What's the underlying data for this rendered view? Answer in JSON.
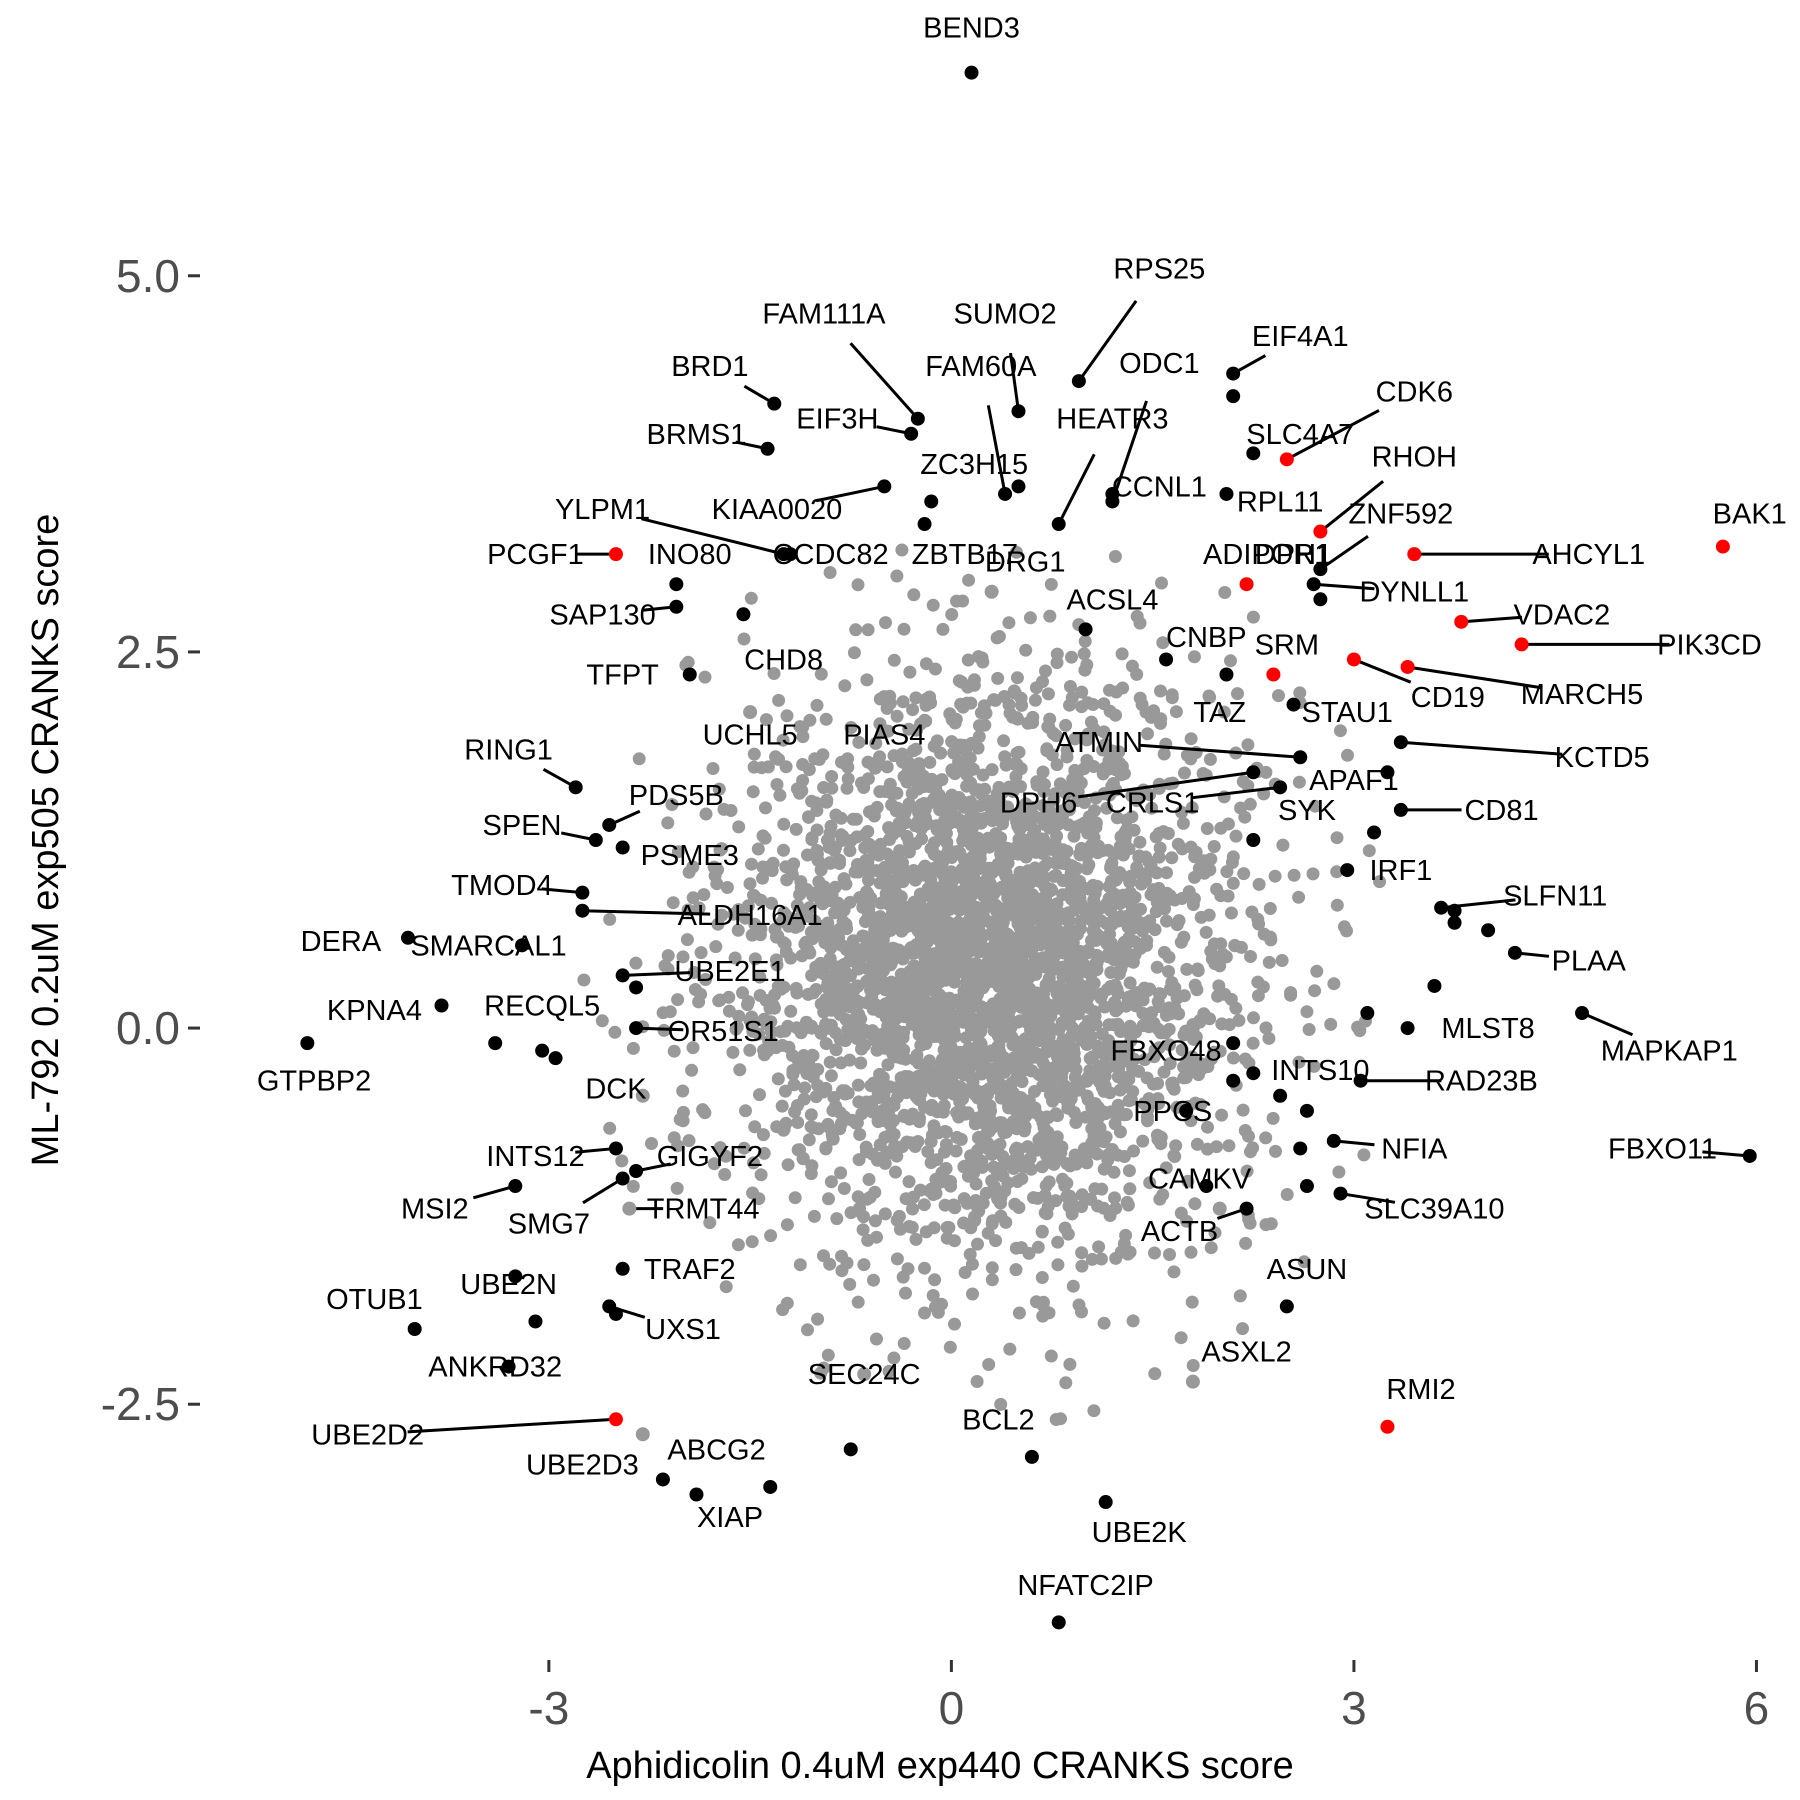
{
  "chart_data": {
    "type": "scatter",
    "xlabel": "Aphidicolin 0.4uM exp440 CRANKS score",
    "ylabel": "ML-792 0.2uM exp505 CRANKS score",
    "xlim": [
      -5.6,
      6.25
    ],
    "ylim": [
      -4.2,
      6.7
    ],
    "xticks": [
      "-3",
      "0",
      "3",
      "6"
    ],
    "yticks": [
      "-2.5",
      "0.0",
      "2.5",
      "5.0"
    ],
    "grid": false,
    "colors": {
      "background": "#ffffff",
      "default_point": "#999999",
      "highlight_point": "#000000",
      "special_point": "#ff0000"
    },
    "background_cloud": {
      "count": 3200,
      "center": [
        0.3,
        0.4
      ],
      "sd": [
        0.95,
        0.95
      ],
      "color": "#999999"
    },
    "points": [
      {
        "label": "BEND3",
        "x": 0.15,
        "y": 6.35,
        "c": "b"
      },
      {
        "label": "RPS25",
        "x": 0.95,
        "y": 4.3,
        "c": "b",
        "lx": 1.55,
        "ly": 5.05
      },
      {
        "label": "SUMO2",
        "x": 0.5,
        "y": 4.1,
        "c": "b",
        "lx": 0.4,
        "ly": 4.75
      },
      {
        "label": "FAM111A",
        "x": -0.25,
        "y": 4.05,
        "c": "b",
        "lx": -0.95,
        "ly": 4.75
      },
      {
        "label": "FAM60A",
        "x": 0.4,
        "y": 3.55,
        "c": "b",
        "lx": 0.22,
        "ly": 4.4
      },
      {
        "label": "ODC1",
        "x": 1.2,
        "y": 3.5,
        "c": "b",
        "lx": 1.55,
        "ly": 4.42
      },
      {
        "label": "EIF4A1",
        "x": 2.1,
        "y": 4.35,
        "c": "b",
        "lx": 2.6,
        "ly": 4.6
      },
      {
        "label": "",
        "x": 2.1,
        "y": 4.2,
        "c": "b"
      },
      {
        "label": "BRD1",
        "x": -1.32,
        "y": 4.15,
        "c": "b",
        "lx": -1.8,
        "ly": 4.4
      },
      {
        "label": "EIF3H",
        "x": -0.3,
        "y": 3.95,
        "c": "b",
        "lx": -0.85,
        "ly": 4.05
      },
      {
        "label": "BRMS1",
        "x": -1.37,
        "y": 3.85,
        "c": "b",
        "lx": -1.9,
        "ly": 3.95
      },
      {
        "label": "HEATR3",
        "x": 0.8,
        "y": 3.35,
        "c": "b",
        "lx": 1.2,
        "ly": 4.05
      },
      {
        "label": "CDK6",
        "x": 2.5,
        "y": 3.78,
        "c": "r",
        "lx": 3.45,
        "ly": 4.23
      },
      {
        "label": "SLC4A7",
        "x": 2.25,
        "y": 3.82,
        "c": "b",
        "lx": 2.6,
        "ly": 3.95
      },
      {
        "label": "ZC3H15",
        "x": 0.5,
        "y": 3.6,
        "c": "b",
        "lx": 0.17,
        "ly": 3.75
      },
      {
        "label": "RHOH",
        "x": 2.75,
        "y": 3.3,
        "c": "r",
        "lx": 3.45,
        "ly": 3.8
      },
      {
        "label": "CCNL1",
        "x": 1.2,
        "y": 3.55,
        "c": "b",
        "lx": 1.55,
        "ly": 3.6
      },
      {
        "label": "RPL11",
        "x": 2.05,
        "y": 3.55,
        "c": "b",
        "lx": 2.45,
        "ly": 3.5
      },
      {
        "label": "YLPM1",
        "x": -1.25,
        "y": 3.15,
        "c": "b",
        "lx": -2.6,
        "ly": 3.45
      },
      {
        "label": "KIAA0020",
        "x": -0.5,
        "y": 3.6,
        "c": "b",
        "lx": -1.3,
        "ly": 3.45
      },
      {
        "label": "",
        "x": -0.15,
        "y": 3.5,
        "c": "b"
      },
      {
        "label": "ZNF592",
        "x": 2.75,
        "y": 3.05,
        "c": "b",
        "lx": 3.35,
        "ly": 3.42
      },
      {
        "label": "BAK1",
        "x": 5.75,
        "y": 3.2,
        "c": "r",
        "lx": 5.95,
        "ly": 3.42
      },
      {
        "label": "PCGF1",
        "x": -2.5,
        "y": 3.15,
        "c": "r",
        "lx": -3.1,
        "ly": 3.15
      },
      {
        "label": "INO80",
        "x": -2.05,
        "y": 2.95,
        "c": "b",
        "lx": -1.95,
        "ly": 3.15
      },
      {
        "label": "CCDC82",
        "x": -1.2,
        "y": 3.15,
        "c": "b",
        "lx": -0.9,
        "ly": 3.15
      },
      {
        "label": "ZBTB17",
        "x": -0.2,
        "y": 3.35,
        "c": "b",
        "lx": 0.1,
        "ly": 3.15
      },
      {
        "label": "DRG1",
        "x": 0.3,
        "y": 2.9,
        "c": "g",
        "lx": 0.55,
        "ly": 3.1
      },
      {
        "label": "ADIPOR1",
        "x": 2.2,
        "y": 2.95,
        "c": "r",
        "lx": 2.35,
        "ly": 3.15
      },
      {
        "label": "DPH1",
        "x": 2.75,
        "y": 2.85,
        "c": "b",
        "lx": 2.55,
        "ly": 3.15
      },
      {
        "label": "AHCYL1",
        "x": 3.45,
        "y": 3.15,
        "c": "r",
        "lx": 4.75,
        "ly": 3.15
      },
      {
        "label": "SAP130",
        "x": -2.05,
        "y": 2.8,
        "c": "b",
        "lx": -2.6,
        "ly": 2.75
      },
      {
        "label": "DYNLL1",
        "x": 2.7,
        "y": 2.95,
        "c": "b",
        "lx": 3.45,
        "ly": 2.9
      },
      {
        "label": "ACSL4",
        "x": 1.0,
        "y": 2.65,
        "c": "b",
        "lx": 1.2,
        "ly": 2.85
      },
      {
        "label": "CNBP",
        "x": 1.6,
        "y": 2.45,
        "c": "b",
        "lx": 1.9,
        "ly": 2.6
      },
      {
        "label": "VDAC2",
        "x": 3.8,
        "y": 2.7,
        "c": "r",
        "lx": 4.55,
        "ly": 2.75
      },
      {
        "label": "SRM",
        "x": 2.4,
        "y": 2.35,
        "c": "r",
        "lx": 2.5,
        "ly": 2.55
      },
      {
        "label": "PIK3CD",
        "x": 4.25,
        "y": 2.55,
        "c": "r",
        "lx": 5.65,
        "ly": 2.55
      },
      {
        "label": "CHD8",
        "x": -1.55,
        "y": 2.75,
        "c": "b",
        "lx": -1.25,
        "ly": 2.45
      },
      {
        "label": "TFPT",
        "x": -1.95,
        "y": 2.35,
        "c": "b",
        "lx": -2.45,
        "ly": 2.35
      },
      {
        "label": "CD19",
        "x": 3.0,
        "y": 2.45,
        "c": "r",
        "lx": 3.7,
        "ly": 2.2
      },
      {
        "label": "MARCH5",
        "x": 3.4,
        "y": 2.4,
        "c": "r",
        "lx": 4.7,
        "ly": 2.22
      },
      {
        "label": "STAU1",
        "x": 2.55,
        "y": 2.15,
        "c": "b",
        "lx": 2.95,
        "ly": 2.1
      },
      {
        "label": "TAZ",
        "x": 2.05,
        "y": 2.35,
        "c": "b",
        "lx": 2.0,
        "ly": 2.1
      },
      {
        "label": "ATMIN",
        "x": 2.6,
        "y": 1.8,
        "c": "b",
        "lx": 1.1,
        "ly": 1.9
      },
      {
        "label": "UCHL5",
        "x": -1.5,
        "y": 2.1,
        "c": "g",
        "lx": -1.5,
        "ly": 1.95
      },
      {
        "label": "PIAS4",
        "x": -0.5,
        "y": 2.2,
        "c": "g",
        "lx": -0.5,
        "ly": 1.95
      },
      {
        "label": "KCTD5",
        "x": 3.35,
        "y": 1.9,
        "c": "b",
        "lx": 4.85,
        "ly": 1.8
      },
      {
        "label": "RING1",
        "x": -2.8,
        "y": 1.6,
        "c": "b",
        "lx": -3.3,
        "ly": 1.85
      },
      {
        "label": "DPH6",
        "x": 2.25,
        "y": 1.7,
        "c": "b",
        "lx": 0.65,
        "ly": 1.5
      },
      {
        "label": "CRLS1",
        "x": 2.45,
        "y": 1.6,
        "c": "b",
        "lx": 1.5,
        "ly": 1.5
      },
      {
        "label": "APAF1",
        "x": 3.25,
        "y": 1.7,
        "c": "b",
        "lx": 3.0,
        "ly": 1.65
      },
      {
        "label": "PDS5B",
        "x": -2.55,
        "y": 1.35,
        "c": "b",
        "lx": -2.05,
        "ly": 1.55
      },
      {
        "label": "SYK",
        "x": 2.25,
        "y": 1.25,
        "c": "b",
        "lx": 2.65,
        "ly": 1.45
      },
      {
        "label": "CD81",
        "x": 3.35,
        "y": 1.45,
        "c": "b",
        "lx": 4.1,
        "ly": 1.45
      },
      {
        "label": "SPEN",
        "x": -2.65,
        "y": 1.25,
        "c": "b",
        "lx": -3.2,
        "ly": 1.35
      },
      {
        "label": "PSME3",
        "x": -2.45,
        "y": 1.2,
        "c": "b",
        "lx": -1.95,
        "ly": 1.15
      },
      {
        "label": "IRF1",
        "x": 2.95,
        "y": 1.05,
        "c": "b",
        "lx": 3.35,
        "ly": 1.05
      },
      {
        "label": "",
        "x": 3.15,
        "y": 1.3,
        "c": "b"
      },
      {
        "label": "SLFN11",
        "x": 3.65,
        "y": 0.8,
        "c": "b",
        "lx": 4.5,
        "ly": 0.88
      },
      {
        "label": "TMOD4",
        "x": -2.75,
        "y": 0.9,
        "c": "b",
        "lx": -3.35,
        "ly": 0.95
      },
      {
        "label": "ALDH16A1",
        "x": -2.75,
        "y": 0.78,
        "c": "b",
        "lx": -1.5,
        "ly": 0.75
      },
      {
        "label": "",
        "x": 3.75,
        "y": 0.78,
        "c": "b"
      },
      {
        "label": "",
        "x": 3.75,
        "y": 0.7,
        "c": "b"
      },
      {
        "label": "DERA",
        "x": -4.05,
        "y": 0.6,
        "c": "b",
        "lx": -4.55,
        "ly": 0.58
      },
      {
        "label": "SMARCAL1",
        "x": -3.2,
        "y": 0.55,
        "c": "b",
        "lx": -3.45,
        "ly": 0.55
      },
      {
        "label": "",
        "x": 4.0,
        "y": 0.65,
        "c": "b"
      },
      {
        "label": "PLAA",
        "x": 4.2,
        "y": 0.5,
        "c": "b",
        "lx": 4.75,
        "ly": 0.45
      },
      {
        "label": "UBE2E1",
        "x": -2.45,
        "y": 0.35,
        "c": "b",
        "lx": -1.65,
        "ly": 0.38
      },
      {
        "label": "",
        "x": -2.35,
        "y": 0.27,
        "c": "b"
      },
      {
        "label": "MLST8",
        "x": 3.6,
        "y": 0.28,
        "c": "b",
        "lx": 4.0,
        "ly": 0.0
      },
      {
        "label": "MAPKAP1",
        "x": 4.7,
        "y": 0.1,
        "c": "b",
        "lx": 5.35,
        "ly": -0.15
      },
      {
        "label": "KPNA4",
        "x": -3.8,
        "y": 0.15,
        "c": "b",
        "lx": -4.3,
        "ly": 0.12
      },
      {
        "label": "RECQL5",
        "x": -3.4,
        "y": -0.1,
        "c": "b",
        "lx": -3.05,
        "ly": 0.15
      },
      {
        "label": "OR51S1",
        "x": -2.35,
        "y": 0.0,
        "c": "b",
        "lx": -1.7,
        "ly": -0.02
      },
      {
        "label": "GTPBP2",
        "x": -4.8,
        "y": -0.1,
        "c": "b",
        "lx": -4.75,
        "ly": -0.35
      },
      {
        "label": "",
        "x": -3.05,
        "y": -0.15,
        "c": "b"
      },
      {
        "label": "",
        "x": -2.95,
        "y": -0.2,
        "c": "b"
      },
      {
        "label": "FBXO48",
        "x": 2.1,
        "y": -0.1,
        "c": "b",
        "lx": 1.6,
        "ly": -0.15
      },
      {
        "label": "INTS10",
        "x": 2.25,
        "y": -0.3,
        "c": "b",
        "lx": 2.75,
        "ly": -0.28
      },
      {
        "label": "RAD23B",
        "x": 3.05,
        "y": -0.35,
        "c": "b",
        "lx": 3.95,
        "ly": -0.35
      },
      {
        "label": "",
        "x": 3.1,
        "y": 0.1,
        "c": "b"
      },
      {
        "label": "",
        "x": 3.4,
        "y": 0.0,
        "c": "b"
      },
      {
        "label": "DCK",
        "x": -2.3,
        "y": -0.45,
        "c": "g",
        "lx": -2.5,
        "ly": -0.4
      },
      {
        "label": "PPCS",
        "x": 1.75,
        "y": -0.55,
        "c": "b",
        "lx": 1.65,
        "ly": -0.55
      },
      {
        "label": "",
        "x": 2.1,
        "y": -0.35,
        "c": "b"
      },
      {
        "label": "",
        "x": 2.45,
        "y": -0.45,
        "c": "b"
      },
      {
        "label": "",
        "x": 2.65,
        "y": -0.55,
        "c": "b"
      },
      {
        "label": "NFIA",
        "x": 2.85,
        "y": -0.75,
        "c": "b",
        "lx": 3.45,
        "ly": -0.8
      },
      {
        "label": "INTS12",
        "x": -2.5,
        "y": -0.8,
        "c": "b",
        "lx": -3.1,
        "ly": -0.85
      },
      {
        "label": "GIGYF2",
        "x": -2.35,
        "y": -0.95,
        "c": "b",
        "lx": -1.8,
        "ly": -0.85
      },
      {
        "label": "CAMKV",
        "x": 1.9,
        "y": -1.05,
        "c": "b",
        "lx": 1.85,
        "ly": -1.0
      },
      {
        "label": "",
        "x": 2.6,
        "y": -0.8,
        "c": "b"
      },
      {
        "label": "MSI2",
        "x": -3.25,
        "y": -1.05,
        "c": "b",
        "lx": -3.85,
        "ly": -1.2
      },
      {
        "label": "SLC39A10",
        "x": 2.9,
        "y": -1.1,
        "c": "b",
        "lx": 3.6,
        "ly": -1.2
      },
      {
        "label": "",
        "x": 2.65,
        "y": -1.05,
        "c": "b"
      },
      {
        "label": "SMG7",
        "x": -2.45,
        "y": -1.0,
        "c": "b",
        "lx": -3.0,
        "ly": -1.3
      },
      {
        "label": "TRMT44",
        "x": -2.4,
        "y": -1.2,
        "c": "g",
        "lx": -1.85,
        "ly": -1.2
      },
      {
        "label": "ACTB",
        "x": 2.2,
        "y": -1.2,
        "c": "b",
        "lx": 1.7,
        "ly": -1.35
      },
      {
        "label": "",
        "x": 2.0,
        "y": -1.2,
        "c": "g"
      },
      {
        "label": "ASUN",
        "x": 2.5,
        "y": -1.85,
        "c": "b",
        "lx": 2.65,
        "ly": -1.6
      },
      {
        "label": "TRAF2",
        "x": -2.45,
        "y": -1.6,
        "c": "b",
        "lx": -1.95,
        "ly": -1.6
      },
      {
        "label": "UBE2N",
        "x": -3.25,
        "y": -1.65,
        "c": "b",
        "lx": -3.3,
        "ly": -1.7
      },
      {
        "label": "OTUB1",
        "x": -4.0,
        "y": -2.0,
        "c": "b",
        "lx": -4.3,
        "ly": -1.8
      },
      {
        "label": "",
        "x": -3.1,
        "y": -1.95,
        "c": "b"
      },
      {
        "label": "UXS1",
        "x": -2.55,
        "y": -1.85,
        "c": "b",
        "lx": -2.0,
        "ly": -2.0
      },
      {
        "label": "",
        "x": -2.5,
        "y": -1.9,
        "c": "b"
      },
      {
        "label": "ASXL2",
        "x": 1.8,
        "y": -2.35,
        "c": "g",
        "lx": 2.2,
        "ly": -2.15
      },
      {
        "label": "ANKRD32",
        "x": -3.3,
        "y": -2.25,
        "c": "b",
        "lx": -3.4,
        "ly": -2.25
      },
      {
        "label": "SEC24C",
        "x": -0.65,
        "y": -2.3,
        "c": "g",
        "lx": -0.65,
        "ly": -2.3
      },
      {
        "label": "RMI2",
        "x": 3.25,
        "y": -2.65,
        "c": "r",
        "lx": 3.5,
        "ly": -2.4
      },
      {
        "label": "UBE2D2",
        "x": -2.5,
        "y": -2.6,
        "c": "r",
        "lx": -4.35,
        "ly": -2.7
      },
      {
        "label": "BCL2",
        "x": 0.6,
        "y": -2.85,
        "c": "b",
        "lx": 0.35,
        "ly": -2.6
      },
      {
        "label": "UBE2D3",
        "x": -2.3,
        "y": -2.7,
        "c": "g",
        "lx": -2.75,
        "ly": -2.9
      },
      {
        "label": "ABCG2",
        "x": -1.35,
        "y": -3.05,
        "c": "b",
        "lx": -1.75,
        "ly": -2.8
      },
      {
        "label": "",
        "x": -0.75,
        "y": -2.8,
        "c": "b"
      },
      {
        "label": "",
        "x": -2.15,
        "y": -3.0,
        "c": "b"
      },
      {
        "label": "XIAP",
        "x": -1.9,
        "y": -3.1,
        "c": "b",
        "lx": -1.65,
        "ly": -3.25
      },
      {
        "label": "UBE2K",
        "x": 1.15,
        "y": -3.15,
        "c": "b",
        "lx": 1.4,
        "ly": -3.35
      },
      {
        "label": "NFATC2IP",
        "x": 0.8,
        "y": -3.95,
        "c": "b",
        "lx": 1.0,
        "ly": -3.7
      },
      {
        "label": "FBXO11",
        "x": 5.95,
        "y": -0.85,
        "c": "b",
        "lx": 5.3,
        "ly": -0.8
      }
    ]
  }
}
